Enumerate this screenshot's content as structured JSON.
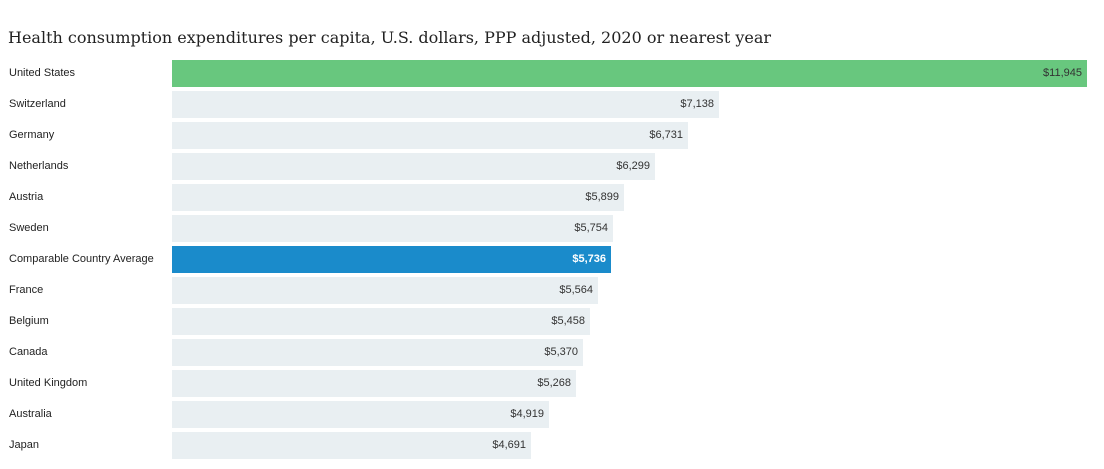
{
  "title": "Health consumption expenditures per capita, U.S. dollars, PPP adjusted, 2020 or nearest year",
  "colors": {
    "default_bar": "#e9eff2",
    "us_bar": "#68c77e",
    "average_bar": "#1a8bcb",
    "average_value_text": "#ffffff",
    "default_value_text": "#333333"
  },
  "chart_data": {
    "type": "bar",
    "orientation": "horizontal",
    "categories": [
      "United States",
      "Switzerland",
      "Germany",
      "Netherlands",
      "Austria",
      "Sweden",
      "Comparable Country Average",
      "France",
      "Belgium",
      "Canada",
      "United Kingdom",
      "Australia",
      "Japan"
    ],
    "values": [
      11945,
      7138,
      6731,
      6299,
      5899,
      5754,
      5736,
      5564,
      5458,
      5370,
      5268,
      4919,
      4691
    ],
    "value_labels": [
      "$11,945",
      "$7,138",
      "$6,731",
      "$6,299",
      "$5,899",
      "$5,754",
      "$5,736",
      "$5,564",
      "$5,458",
      "$5,370",
      "$5,268",
      "$4,919",
      "$4,691"
    ],
    "highlights": {
      "United States": "us_bar",
      "Comparable Country Average": "average_bar"
    },
    "title": "Health consumption expenditures per capita, U.S. dollars, PPP adjusted, 2020 or nearest year",
    "xlabel": "",
    "ylabel": "",
    "xlim": [
      0,
      11945
    ],
    "grid": false,
    "legend": "none"
  }
}
